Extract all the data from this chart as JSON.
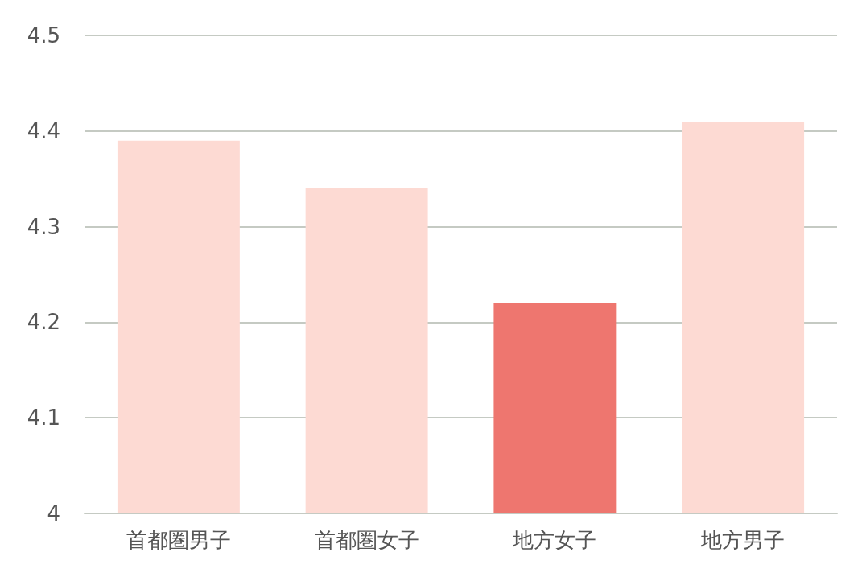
{
  "chart_data": {
    "type": "bar",
    "categories": [
      "首都圏男子",
      "首都圏女子",
      "地方女子",
      "地方男子"
    ],
    "values": [
      4.39,
      4.34,
      4.22,
      4.41
    ],
    "colors": [
      "#fddad3",
      "#fddad3",
      "#ee766f",
      "#fddad3"
    ],
    "ylim": [
      4,
      4.5
    ],
    "yticks": [
      4,
      4.1,
      4.2,
      4.3,
      4.4,
      4.5
    ],
    "grid": "y"
  }
}
